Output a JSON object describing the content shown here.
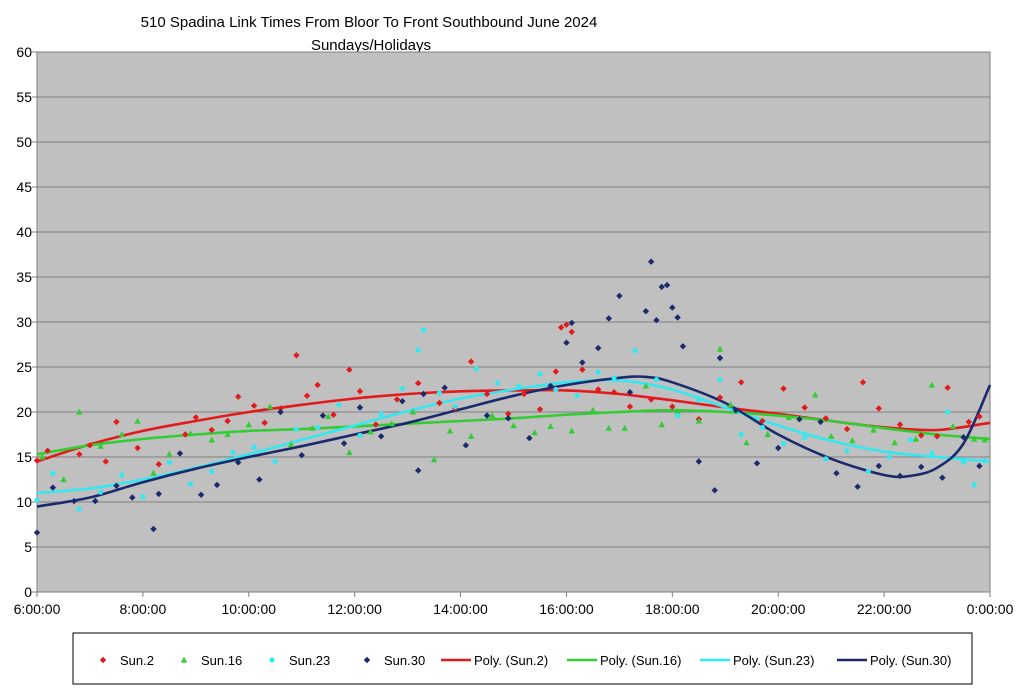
{
  "chart_data": {
    "type": "scatter",
    "title": "510 Spadina Link Times From Bloor To Front Southbound June 2024",
    "subtitle": "Sundays/Holidays",
    "xlabel": "",
    "ylabel": "",
    "xlim_hours": [
      6,
      24
    ],
    "ylim": [
      0,
      60
    ],
    "x_tick_labels": [
      "6:00:00",
      "8:00:00",
      "10:00:00",
      "12:00:00",
      "14:00:00",
      "16:00:00",
      "18:00:00",
      "20:00:00",
      "22:00:00",
      "0:00:00"
    ],
    "y_tick_labels": [
      "0",
      "5",
      "10",
      "15",
      "20",
      "25",
      "30",
      "35",
      "40",
      "45",
      "50",
      "55",
      "60"
    ],
    "grid": true,
    "plot_background": "#c0c0c0",
    "legend_position": "bottom",
    "series": [
      {
        "name": "Sun.2",
        "marker": "diamond",
        "color": "#e31a1c",
        "points": [
          [
            6.0,
            14.6
          ],
          [
            6.2,
            15.7
          ],
          [
            6.8,
            15.3
          ],
          [
            7.0,
            16.3
          ],
          [
            7.3,
            14.5
          ],
          [
            7.5,
            18.9
          ],
          [
            7.9,
            16.0
          ],
          [
            8.3,
            14.2
          ],
          [
            8.8,
            17.5
          ],
          [
            9.0,
            19.4
          ],
          [
            9.3,
            18.0
          ],
          [
            9.6,
            19.0
          ],
          [
            9.8,
            21.7
          ],
          [
            10.1,
            20.7
          ],
          [
            10.3,
            18.8
          ],
          [
            10.6,
            20.4
          ],
          [
            10.9,
            26.3
          ],
          [
            11.1,
            21.8
          ],
          [
            11.3,
            23.0
          ],
          [
            11.6,
            19.7
          ],
          [
            11.9,
            24.7
          ],
          [
            12.1,
            22.3
          ],
          [
            12.4,
            18.6
          ],
          [
            12.8,
            21.4
          ],
          [
            13.2,
            23.2
          ],
          [
            13.6,
            21.0
          ],
          [
            13.9,
            20.4
          ],
          [
            14.2,
            25.6
          ],
          [
            14.5,
            22.0
          ],
          [
            14.9,
            19.8
          ],
          [
            15.2,
            22.0
          ],
          [
            15.5,
            20.3
          ],
          [
            15.8,
            24.5
          ],
          [
            15.9,
            29.4
          ],
          [
            16.0,
            29.7
          ],
          [
            16.1,
            28.9
          ],
          [
            16.3,
            24.7
          ],
          [
            16.6,
            22.5
          ],
          [
            16.9,
            22.2
          ],
          [
            17.2,
            20.6
          ],
          [
            17.6,
            21.4
          ],
          [
            18.0,
            20.6
          ],
          [
            18.5,
            19.2
          ],
          [
            18.9,
            21.6
          ],
          [
            19.3,
            23.3
          ],
          [
            19.7,
            19.0
          ],
          [
            20.1,
            22.6
          ],
          [
            20.5,
            20.5
          ],
          [
            20.9,
            19.3
          ],
          [
            21.3,
            18.1
          ],
          [
            21.6,
            23.3
          ],
          [
            21.9,
            20.4
          ],
          [
            22.3,
            18.6
          ],
          [
            22.7,
            17.4
          ],
          [
            23.0,
            17.3
          ],
          [
            23.2,
            22.7
          ],
          [
            23.6,
            18.9
          ],
          [
            23.8,
            19.5
          ]
        ]
      },
      {
        "name": "Sun.16",
        "marker": "triangle",
        "color": "#33cc33",
        "points": [
          [
            6.1,
            15.0
          ],
          [
            6.5,
            12.5
          ],
          [
            6.8,
            20.0
          ],
          [
            7.2,
            16.2
          ],
          [
            7.6,
            17.5
          ],
          [
            7.9,
            19.0
          ],
          [
            8.2,
            13.2
          ],
          [
            8.5,
            15.3
          ],
          [
            8.9,
            17.6
          ],
          [
            9.3,
            16.9
          ],
          [
            9.6,
            17.5
          ],
          [
            10.0,
            18.6
          ],
          [
            10.4,
            20.6
          ],
          [
            10.8,
            16.4
          ],
          [
            11.2,
            18.2
          ],
          [
            11.5,
            19.5
          ],
          [
            11.9,
            15.5
          ],
          [
            12.3,
            17.8
          ],
          [
            12.7,
            18.7
          ],
          [
            13.1,
            20.0
          ],
          [
            13.5,
            14.7
          ],
          [
            13.8,
            17.9
          ],
          [
            14.2,
            17.3
          ],
          [
            14.6,
            19.6
          ],
          [
            15.0,
            18.5
          ],
          [
            15.4,
            17.7
          ],
          [
            15.7,
            18.4
          ],
          [
            16.1,
            17.9
          ],
          [
            16.5,
            20.2
          ],
          [
            16.8,
            18.2
          ],
          [
            17.1,
            18.2
          ],
          [
            17.5,
            22.9
          ],
          [
            17.8,
            18.6
          ],
          [
            18.1,
            20.0
          ],
          [
            18.5,
            19.0
          ],
          [
            18.9,
            27.0
          ],
          [
            19.1,
            20.8
          ],
          [
            19.4,
            16.6
          ],
          [
            19.8,
            17.5
          ],
          [
            20.2,
            19.4
          ],
          [
            20.7,
            21.9
          ],
          [
            21.0,
            17.3
          ],
          [
            21.4,
            16.8
          ],
          [
            21.8,
            18.0
          ],
          [
            22.2,
            16.6
          ],
          [
            22.6,
            17.0
          ],
          [
            22.9,
            23.0
          ],
          [
            23.3,
            18.4
          ],
          [
            23.7,
            17.0
          ],
          [
            23.9,
            16.9
          ]
        ]
      },
      {
        "name": "Sun.23",
        "marker": "circle",
        "color": "#33e8f0",
        "points": [
          [
            6.0,
            10.2
          ],
          [
            6.3,
            13.2
          ],
          [
            6.8,
            9.2
          ],
          [
            7.2,
            11.1
          ],
          [
            7.6,
            13.0
          ],
          [
            8.0,
            10.6
          ],
          [
            8.5,
            14.4
          ],
          [
            8.9,
            12.0
          ],
          [
            9.3,
            13.4
          ],
          [
            9.7,
            15.5
          ],
          [
            10.1,
            16.1
          ],
          [
            10.5,
            14.5
          ],
          [
            10.9,
            18.1
          ],
          [
            11.3,
            18.3
          ],
          [
            11.7,
            20.8
          ],
          [
            12.1,
            17.4
          ],
          [
            12.5,
            19.8
          ],
          [
            12.9,
            22.6
          ],
          [
            13.2,
            26.9
          ],
          [
            13.3,
            29.1
          ],
          [
            13.6,
            22.1
          ],
          [
            13.9,
            20.6
          ],
          [
            14.3,
            24.8
          ],
          [
            14.7,
            23.2
          ],
          [
            15.1,
            22.9
          ],
          [
            15.5,
            24.2
          ],
          [
            15.8,
            22.5
          ],
          [
            16.2,
            21.8
          ],
          [
            16.6,
            24.4
          ],
          [
            16.9,
            23.8
          ],
          [
            17.3,
            26.8
          ],
          [
            17.7,
            23.6
          ],
          [
            18.1,
            19.6
          ],
          [
            18.5,
            21.3
          ],
          [
            18.9,
            23.6
          ],
          [
            19.3,
            17.5
          ],
          [
            19.7,
            18.3
          ],
          [
            20.1,
            16.5
          ],
          [
            20.5,
            17.2
          ],
          [
            20.9,
            14.8
          ],
          [
            21.3,
            15.7
          ],
          [
            21.7,
            13.4
          ],
          [
            22.1,
            15.0
          ],
          [
            22.5,
            16.9
          ],
          [
            22.9,
            15.4
          ],
          [
            23.2,
            20.0
          ],
          [
            23.5,
            14.4
          ],
          [
            23.7,
            11.9
          ],
          [
            23.9,
            14.6
          ]
        ]
      },
      {
        "name": "Sun.30",
        "marker": "diamond",
        "color": "#1a2a6c",
        "points": [
          [
            6.0,
            6.6
          ],
          [
            6.3,
            11.6
          ],
          [
            6.7,
            10.1
          ],
          [
            7.1,
            10.1
          ],
          [
            7.5,
            11.8
          ],
          [
            7.8,
            10.5
          ],
          [
            8.2,
            7.0
          ],
          [
            8.3,
            10.9
          ],
          [
            8.7,
            15.4
          ],
          [
            9.1,
            10.8
          ],
          [
            9.4,
            11.9
          ],
          [
            9.8,
            14.4
          ],
          [
            10.2,
            12.5
          ],
          [
            10.6,
            20.0
          ],
          [
            11.0,
            15.2
          ],
          [
            11.4,
            19.6
          ],
          [
            11.8,
            16.5
          ],
          [
            12.1,
            20.5
          ],
          [
            12.5,
            17.3
          ],
          [
            12.9,
            21.2
          ],
          [
            13.2,
            13.5
          ],
          [
            13.3,
            22.0
          ],
          [
            13.7,
            22.7
          ],
          [
            14.1,
            16.3
          ],
          [
            14.5,
            19.6
          ],
          [
            14.9,
            19.3
          ],
          [
            15.3,
            17.1
          ],
          [
            15.7,
            22.9
          ],
          [
            16.0,
            27.7
          ],
          [
            16.1,
            29.9
          ],
          [
            16.3,
            25.5
          ],
          [
            16.6,
            27.1
          ],
          [
            16.8,
            30.4
          ],
          [
            17.0,
            32.9
          ],
          [
            17.2,
            22.2
          ],
          [
            17.5,
            31.2
          ],
          [
            17.6,
            36.7
          ],
          [
            17.7,
            30.2
          ],
          [
            17.8,
            33.9
          ],
          [
            17.9,
            34.1
          ],
          [
            18.0,
            31.6
          ],
          [
            18.1,
            30.5
          ],
          [
            18.2,
            27.3
          ],
          [
            18.5,
            14.5
          ],
          [
            18.8,
            11.3
          ],
          [
            18.9,
            26.0
          ],
          [
            19.2,
            20.2
          ],
          [
            19.6,
            14.3
          ],
          [
            20.0,
            16.0
          ],
          [
            20.4,
            19.2
          ],
          [
            20.8,
            18.9
          ],
          [
            21.1,
            13.2
          ],
          [
            21.5,
            11.7
          ],
          [
            21.9,
            14.0
          ],
          [
            22.3,
            12.9
          ],
          [
            22.7,
            13.9
          ],
          [
            23.1,
            12.7
          ],
          [
            23.5,
            17.2
          ],
          [
            23.8,
            14.0
          ]
        ]
      }
    ],
    "trendlines": [
      {
        "name": "Poly. (Sun.2)",
        "color": "#e31a1c",
        "points": [
          [
            6,
            14.5
          ],
          [
            7,
            16.4
          ],
          [
            8,
            17.9
          ],
          [
            9,
            19.0
          ],
          [
            10,
            20.0
          ],
          [
            11,
            20.8
          ],
          [
            12,
            21.5
          ],
          [
            13,
            22.0
          ],
          [
            14,
            22.3
          ],
          [
            15,
            22.4
          ],
          [
            16,
            22.4
          ],
          [
            17,
            22.0
          ],
          [
            18,
            21.3
          ],
          [
            19,
            20.5
          ],
          [
            20,
            19.8
          ],
          [
            21,
            19.0
          ],
          [
            22,
            18.3
          ],
          [
            23,
            18.0
          ],
          [
            24,
            18.8
          ]
        ]
      },
      {
        "name": "Poly. (Sun.16)",
        "color": "#33cc33",
        "points": [
          [
            6,
            15.3
          ],
          [
            7,
            16.3
          ],
          [
            8,
            17.0
          ],
          [
            9,
            17.5
          ],
          [
            10,
            17.9
          ],
          [
            11,
            18.1
          ],
          [
            12,
            18.4
          ],
          [
            13,
            18.7
          ],
          [
            14,
            19.0
          ],
          [
            15,
            19.3
          ],
          [
            16,
            19.7
          ],
          [
            17,
            20.0
          ],
          [
            18,
            20.2
          ],
          [
            19,
            20.0
          ],
          [
            20,
            19.6
          ],
          [
            21,
            19.0
          ],
          [
            22,
            18.2
          ],
          [
            23,
            17.5
          ],
          [
            24,
            17.0
          ]
        ]
      },
      {
        "name": "Poly. (Sun.23)",
        "color": "#33e8f0",
        "points": [
          [
            6,
            11.0
          ],
          [
            7,
            11.5
          ],
          [
            8,
            12.5
          ],
          [
            9,
            13.8
          ],
          [
            10,
            15.3
          ],
          [
            11,
            16.9
          ],
          [
            12,
            18.5
          ],
          [
            13,
            20.1
          ],
          [
            14,
            21.5
          ],
          [
            15,
            22.5
          ],
          [
            16,
            23.3
          ],
          [
            17,
            23.5
          ],
          [
            18,
            22.5
          ],
          [
            19,
            20.5
          ],
          [
            20,
            18.5
          ],
          [
            21,
            16.8
          ],
          [
            22,
            15.6
          ],
          [
            23,
            15.0
          ],
          [
            24,
            14.5
          ]
        ]
      },
      {
        "name": "Poly. (Sun.30)",
        "color": "#1a2a6c",
        "points": [
          [
            6,
            9.5
          ],
          [
            7,
            10.5
          ],
          [
            8,
            12.2
          ],
          [
            9,
            13.7
          ],
          [
            10,
            15.0
          ],
          [
            11,
            16.2
          ],
          [
            12,
            17.5
          ],
          [
            13,
            18.8
          ],
          [
            14,
            20.3
          ],
          [
            15,
            21.8
          ],
          [
            16,
            23.0
          ],
          [
            17,
            23.8
          ],
          [
            17.5,
            23.9
          ],
          [
            18,
            23.3
          ],
          [
            19,
            21.0
          ],
          [
            20,
            17.5
          ],
          [
            21,
            14.8
          ],
          [
            22,
            13.0
          ],
          [
            22.5,
            12.9
          ],
          [
            23,
            13.8
          ],
          [
            23.5,
            16.5
          ],
          [
            24,
            23.0
          ]
        ]
      }
    ]
  }
}
